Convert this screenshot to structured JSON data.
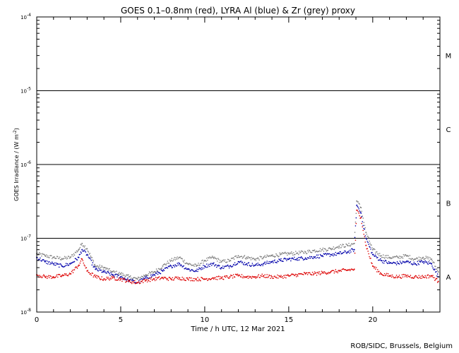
{
  "chart_data": {
    "type": "scatter",
    "title": "GOES 0.1–0.8nm (red), LYRA Al (blue) & Zr (grey) proxy",
    "xlabel": "Time / h UTC, 12 Mar 2021",
    "ylabel": "GOES Irradiance / (W m",
    "ylabel_sup": "-2",
    "ylabel_close": ")",
    "credit": "ROB/SIDC, Brussels, Belgium",
    "xlim": [
      0,
      24
    ],
    "ylim": [
      1e-08,
      0.0001
    ],
    "yscale": "log",
    "x_ticks": [
      {
        "value": 0,
        "label": "0"
      },
      {
        "value": 5,
        "label": "5"
      },
      {
        "value": 10,
        "label": "10"
      },
      {
        "value": 15,
        "label": "15"
      },
      {
        "value": 20,
        "label": "20"
      }
    ],
    "y_ticks": [
      {
        "value": 1e-08,
        "base": "10",
        "exp": "-8"
      },
      {
        "value": 1e-07,
        "base": "10",
        "exp": "-7"
      },
      {
        "value": 1e-06,
        "base": "10",
        "exp": "-6"
      },
      {
        "value": 1e-05,
        "base": "10",
        "exp": "-5"
      },
      {
        "value": 0.0001,
        "base": "10",
        "exp": "-4"
      }
    ],
    "class_lines": [
      1e-07,
      1e-06,
      1e-05
    ],
    "class_labels": [
      {
        "label": "A",
        "value": 3e-08
      },
      {
        "label": "B",
        "value": 3e-07
      },
      {
        "label": "C",
        "value": 3e-06
      },
      {
        "label": "M",
        "value": 3e-05
      }
    ],
    "series": [
      {
        "color": "#808080",
        "x": [
          0,
          0.5,
          1,
          1.5,
          2,
          2.5,
          2.7,
          3,
          3.5,
          4,
          4.5,
          5,
          5.5,
          6,
          6.5,
          7,
          7.5,
          8,
          8.5,
          9,
          9.5,
          10,
          10.5,
          11,
          11.5,
          12,
          12.5,
          13,
          13.5,
          14,
          14.5,
          15,
          15.5,
          16,
          16.5,
          17,
          17.5,
          18,
          18.5,
          18.9,
          19.05,
          19.3,
          19.6,
          20,
          20.5,
          21,
          21.5,
          22,
          22.5,
          23,
          23.5,
          23.9
        ],
        "y": [
          6.2e-08,
          5.8e-08,
          5.5e-08,
          5.3e-08,
          5.5e-08,
          7e-08,
          8.5e-08,
          7.2e-08,
          4.2e-08,
          4e-08,
          3.5e-08,
          3.3e-08,
          3e-08,
          2.8e-08,
          3.2e-08,
          3.5e-08,
          4.2e-08,
          5e-08,
          5.5e-08,
          4.5e-08,
          4.2e-08,
          5e-08,
          5.5e-08,
          4.8e-08,
          5e-08,
          5.8e-08,
          5.5e-08,
          5.2e-08,
          5.5e-08,
          5.8e-08,
          6e-08,
          6.2e-08,
          6.3e-08,
          6.5e-08,
          6.8e-08,
          7e-08,
          7.2e-08,
          7.8e-08,
          8e-08,
          8.5e-08,
          3.2e-07,
          2.6e-07,
          1.2e-07,
          7e-08,
          5.8e-08,
          5.5e-08,
          5.5e-08,
          5.8e-08,
          5.2e-08,
          5.5e-08,
          5.2e-08,
          3.5e-08
        ]
      },
      {
        "color": "#0000aa",
        "x": [
          0,
          0.5,
          1,
          1.5,
          2,
          2.5,
          2.7,
          3,
          3.5,
          4,
          4.5,
          5,
          5.5,
          6,
          6.5,
          7,
          7.5,
          8,
          8.5,
          9,
          9.5,
          10,
          10.5,
          11,
          11.5,
          12,
          12.5,
          13,
          13.5,
          14,
          14.5,
          15,
          15.5,
          16,
          16.5,
          17,
          17.5,
          18,
          18.5,
          18.9,
          19.05,
          19.3,
          19.6,
          20,
          20.5,
          21,
          21.5,
          22,
          22.5,
          23,
          23.5,
          23.9
        ],
        "y": [
          5.5e-08,
          4.8e-08,
          4.5e-08,
          4.2e-08,
          4.5e-08,
          5.5e-08,
          7e-08,
          6e-08,
          3.8e-08,
          3.5e-08,
          3.2e-08,
          3e-08,
          2.7e-08,
          2.5e-08,
          2.9e-08,
          3.2e-08,
          3.6e-08,
          4.2e-08,
          4.5e-08,
          3.8e-08,
          3.6e-08,
          4.2e-08,
          4.5e-08,
          4e-08,
          4.2e-08,
          4.8e-08,
          4.5e-08,
          4.3e-08,
          4.5e-08,
          4.8e-08,
          5e-08,
          5.2e-08,
          5.3e-08,
          5.4e-08,
          5.6e-08,
          5.8e-08,
          6e-08,
          6.2e-08,
          6.5e-08,
          7e-08,
          2.8e-07,
          2.2e-07,
          1e-07,
          6e-08,
          5e-08,
          4.6e-08,
          4.6e-08,
          4.8e-08,
          4.5e-08,
          4.8e-08,
          4.5e-08,
          3e-08
        ]
      },
      {
        "color": "#dd0000",
        "x": [
          0,
          0.5,
          1,
          1.5,
          2,
          2.5,
          2.7,
          3,
          3.5,
          4,
          4.5,
          5,
          5.5,
          6,
          6.5,
          7,
          7.5,
          8,
          8.5,
          9,
          9.5,
          10,
          10.5,
          11,
          11.5,
          12,
          12.5,
          13,
          13.5,
          14,
          14.5,
          15,
          15.5,
          16,
          16.5,
          17,
          17.5,
          18,
          18.5,
          18.9,
          19.05,
          19.3,
          19.6,
          20,
          20.5,
          21,
          21.5,
          22,
          22.5,
          23,
          23.5,
          23.9
        ],
        "y": [
          3.2e-08,
          3e-08,
          3e-08,
          3.1e-08,
          3.3e-08,
          4.3e-08,
          5.2e-08,
          3.6e-08,
          3e-08,
          2.8e-08,
          2.9e-08,
          2.8e-08,
          2.6e-08,
          2.5e-08,
          2.7e-08,
          2.8e-08,
          2.9e-08,
          2.8e-08,
          2.9e-08,
          2.8e-08,
          2.8e-08,
          2.8e-08,
          2.9e-08,
          2.9e-08,
          3e-08,
          3.1e-08,
          3e-08,
          3e-08,
          3.1e-08,
          3e-08,
          3e-08,
          3.1e-08,
          3.2e-08,
          3.3e-08,
          3.3e-08,
          3.4e-08,
          3.5e-08,
          3.6e-08,
          3.7e-08,
          3.8e-08,
          2.4e-07,
          1.9e-07,
          8e-08,
          4.2e-08,
          3.3e-08,
          3.1e-08,
          3e-08,
          3.1e-08,
          3e-08,
          3e-08,
          3.1e-08,
          2.6e-08
        ]
      }
    ]
  }
}
